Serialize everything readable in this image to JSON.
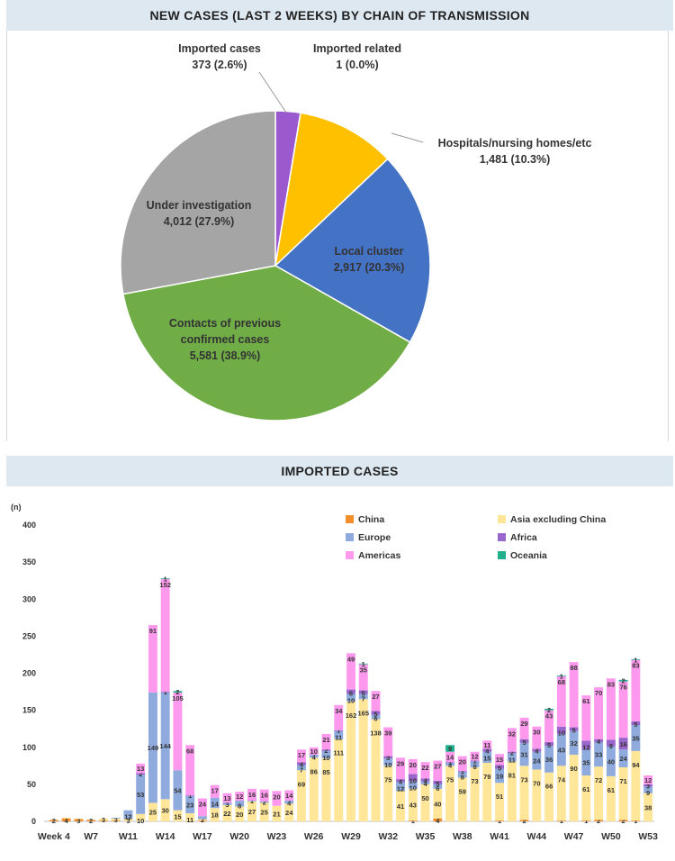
{
  "pie_header": "NEW CASES (LAST 2 WEEKS) BY CHAIN OF TRANSMISSION",
  "bar_header": "IMPORTED CASES",
  "chart_data": [
    {
      "type": "pie",
      "slices": [
        {
          "label": "Imported cases",
          "value_label": "373  (2.6%)",
          "value": 373,
          "percent": 2.6,
          "color": "#9b59d0"
        },
        {
          "label": "Imported related",
          "value_label": "1  (0.0%)",
          "value": 1,
          "percent": 0.0,
          "color": "#ff9900"
        },
        {
          "label": "Hospitals/nursing homes/etc",
          "value_label": "1,481  (10.3%)",
          "value": 1481,
          "percent": 10.3,
          "color": "#ffc000"
        },
        {
          "label": "Local cluster",
          "value_label": "2,917  (20.3%)",
          "value": 2917,
          "percent": 20.3,
          "color": "#4472c4"
        },
        {
          "label": "Contacts of previous confirmed cases",
          "label_lines": [
            "Contacts of previous",
            "confirmed cases"
          ],
          "value_label": "5,581  (38.9%)",
          "value": 5581,
          "percent": 38.9,
          "color": "#70ad47"
        },
        {
          "label": "Under investigation",
          "value_label": "4,012  (27.9%)",
          "value": 4012,
          "percent": 27.9,
          "color": "#a5a5a5"
        }
      ]
    },
    {
      "type": "bar",
      "stacked": true,
      "ylabel": "(n)",
      "ylim": [
        0,
        400
      ],
      "yticks": [
        0,
        50,
        100,
        150,
        200,
        250,
        300,
        350,
        400
      ],
      "x_tick_labels": [
        "Week 4",
        "W7",
        "W11",
        "W14",
        "W17",
        "W20",
        "W23",
        "W26",
        "W29",
        "W32",
        "W35",
        "W38",
        "W41",
        "W44",
        "W47",
        "W50",
        "W53"
      ],
      "legend": [
        {
          "name": "China",
          "color": "#f28e2b"
        },
        {
          "name": "Asia excluding China",
          "color": "#ffe699"
        },
        {
          "name": "Europe",
          "color": "#8faadc"
        },
        {
          "name": "Africa",
          "color": "#9966cc"
        },
        {
          "name": "Americas",
          "color": "#ff99ee"
        },
        {
          "name": "Oceania",
          "color": "#20b08c"
        }
      ],
      "series_order": [
        "china",
        "asia",
        "europe",
        "africa",
        "americas",
        "oceania"
      ],
      "series_colors": {
        "china": "#f28e2b",
        "asia": "#ffe699",
        "europe": "#8faadc",
        "africa": "#9966cc",
        "americas": "#ff99ee",
        "oceania": "#20b08c"
      },
      "weeks": [
        {
          "w": "Week 4",
          "china": 2,
          "asia": 0,
          "europe": 0,
          "africa": 0,
          "americas": 0,
          "oceania": 0,
          "labels": {
            "china": "2"
          }
        },
        {
          "w": "W5",
          "china": 4,
          "asia": 1,
          "europe": 0,
          "africa": 0,
          "americas": 0,
          "oceania": 0,
          "labels": {
            "china": "4"
          }
        },
        {
          "w": "W6",
          "china": 3,
          "asia": 1,
          "europe": 0,
          "africa": 0,
          "americas": 0,
          "oceania": 0,
          "labels": {
            "china": "3"
          }
        },
        {
          "w": "W7",
          "china": 2,
          "asia": 0,
          "europe": 0,
          "africa": 0,
          "americas": 0,
          "oceania": 0,
          "labels": {
            "china": "2"
          }
        },
        {
          "w": "W8",
          "china": 1,
          "asia": 3,
          "europe": 0,
          "africa": 0,
          "americas": 0,
          "oceania": 0,
          "labels": {
            "asia": "3"
          }
        },
        {
          "w": "W9",
          "china": 1,
          "asia": 3,
          "europe": 1,
          "africa": 0,
          "americas": 0,
          "oceania": 0,
          "labels": {
            "asia": "3"
          }
        },
        {
          "w": "W10",
          "china": 0,
          "asia": 3,
          "europe": 12,
          "africa": 0,
          "americas": 0,
          "oceania": 0,
          "labels": {
            "asia": "3",
            "europe": "12"
          }
        },
        {
          "w": "W11",
          "china": 0,
          "asia": 10,
          "europe": 53,
          "africa": 2,
          "americas": 13,
          "oceania": 0,
          "labels": {
            "asia": "10",
            "europe": "53",
            "africa": "2",
            "americas": "13"
          }
        },
        {
          "w": "W12",
          "china": 0,
          "asia": 25,
          "europe": 149,
          "africa": 0,
          "americas": 91,
          "oceania": 0,
          "labels": {
            "asia": "25",
            "europe": "149",
            "americas": "91"
          }
        },
        {
          "w": "W13",
          "china": 0,
          "asia": 30,
          "europe": 144,
          "africa": 1,
          "americas": 152,
          "oceania": 1,
          "labels": {
            "asia": "30",
            "europe": "144",
            "africa": "1",
            "americas": "152",
            "oceania": "1"
          }
        },
        {
          "w": "W14",
          "china": 0,
          "asia": 15,
          "europe": 54,
          "africa": 0,
          "americas": 105,
          "oceania": 2,
          "labels": {
            "asia": "15",
            "europe": "54",
            "americas": "105",
            "oceania": "2"
          }
        },
        {
          "w": "W15",
          "china": 0,
          "asia": 11,
          "europe": 23,
          "africa": 1,
          "americas": 68,
          "oceania": 0,
          "labels": {
            "asia": "11",
            "europe": "23",
            "africa": "1",
            "americas": "68"
          }
        },
        {
          "w": "W16",
          "china": 1,
          "asia": 2,
          "europe": 4,
          "africa": 0,
          "americas": 24,
          "oceania": 0,
          "labels": {
            "asia": "2",
            "americas": "24"
          }
        },
        {
          "w": "W17",
          "china": 0,
          "asia": 18,
          "europe": 14,
          "africa": 0,
          "americas": 17,
          "oceania": 0,
          "labels": {
            "asia": "18",
            "europe": "14",
            "americas": "17"
          }
        },
        {
          "w": "W18",
          "china": 0,
          "asia": 22,
          "europe": 3,
          "africa": 0,
          "americas": 13,
          "oceania": 0,
          "labels": {
            "asia": "22",
            "europe": "3",
            "americas": "13"
          }
        },
        {
          "w": "W19",
          "china": 0,
          "asia": 20,
          "europe": 8,
          "africa": 0,
          "americas": 12,
          "oceania": 0,
          "labels": {
            "asia": "20",
            "europe": "8",
            "americas": "12"
          }
        },
        {
          "w": "W20",
          "china": 0,
          "asia": 27,
          "europe": 1,
          "africa": 0,
          "americas": 16,
          "oceania": 0,
          "labels": {
            "asia": "27",
            "europe": "1",
            "americas": "16"
          }
        },
        {
          "w": "W21",
          "china": 0,
          "asia": 25,
          "europe": 2,
          "africa": 0,
          "americas": 16,
          "oceania": 0,
          "labels": {
            "asia": "25",
            "europe": "2",
            "americas": "16"
          }
        },
        {
          "w": "W22",
          "china": 0,
          "asia": 21,
          "europe": 0,
          "africa": 0,
          "americas": 20,
          "oceania": 0,
          "labels": {
            "asia": "21",
            "americas": "20"
          }
        },
        {
          "w": "W23",
          "china": 0,
          "asia": 24,
          "europe": 4,
          "africa": 0,
          "americas": 14,
          "oceania": 0,
          "labels": {
            "asia": "24",
            "europe": "4",
            "americas": "14"
          }
        },
        {
          "w": "W24",
          "china": 0,
          "asia": 69,
          "europe": 7,
          "africa": 4,
          "americas": 17,
          "oceania": 0,
          "labels": {
            "asia": "69",
            "europe": "7",
            "africa": "4",
            "americas": "17"
          }
        },
        {
          "w": "W25",
          "china": 0,
          "asia": 86,
          "europe": 4,
          "africa": 0,
          "americas": 10,
          "oceania": 0,
          "labels": {
            "asia": "86",
            "europe": "4",
            "americas": "10"
          }
        },
        {
          "w": "W26",
          "china": 0,
          "asia": 85,
          "europe": 10,
          "africa": 2,
          "americas": 21,
          "oceania": 0,
          "labels": {
            "asia": "85",
            "europe": "10",
            "africa": "2",
            "americas": "21"
          }
        },
        {
          "w": "W27",
          "china": 0,
          "asia": 111,
          "europe": 11,
          "africa": 1,
          "americas": 34,
          "oceania": 0,
          "labels": {
            "asia": "111",
            "europe": "11",
            "africa": "1",
            "americas": "34"
          }
        },
        {
          "w": "W28",
          "china": 0,
          "asia": 162,
          "europe": 10,
          "africa": 6,
          "americas": 49,
          "oceania": 0,
          "labels": {
            "asia": "162",
            "europe": "10",
            "africa": "6",
            "americas": "49"
          }
        },
        {
          "w": "W29",
          "china": 0,
          "asia": 165,
          "europe": 7,
          "africa": 5,
          "americas": 35,
          "oceania": 1,
          "labels": {
            "asia": "165",
            "europe": "7",
            "africa": "5",
            "americas": "35",
            "oceania": "1"
          }
        },
        {
          "w": "W30",
          "china": 0,
          "asia": 138,
          "europe": 6,
          "africa": 5,
          "americas": 27,
          "oceania": 0,
          "labels": {
            "asia": "138",
            "europe": "6",
            "africa": "5",
            "americas": "27"
          }
        },
        {
          "w": "W31",
          "china": 0,
          "asia": 75,
          "europe": 10,
          "africa": 3,
          "americas": 39,
          "oceania": 0,
          "labels": {
            "asia": "75",
            "europe": "10",
            "africa": "3",
            "americas": "39"
          }
        },
        {
          "w": "W32",
          "china": 0,
          "asia": 41,
          "europe": 12,
          "africa": 4,
          "americas": 29,
          "oceania": 0,
          "labels": {
            "asia": "41",
            "europe": "12",
            "africa": "4",
            "americas": "29"
          }
        },
        {
          "w": "W33",
          "china": 1,
          "asia": 43,
          "europe": 10,
          "africa": 10,
          "americas": 20,
          "oceania": 0,
          "labels": {
            "china": "1",
            "asia": "43",
            "europe": "10",
            "africa": "10",
            "americas": "20"
          }
        },
        {
          "w": "W34",
          "china": 0,
          "asia": 50,
          "europe": 4,
          "africa": 4,
          "americas": 22,
          "oceania": 0,
          "labels": {
            "asia": "50",
            "europe": "4",
            "africa": "4",
            "americas": "22"
          }
        },
        {
          "w": "W35",
          "china": 4,
          "asia": 40,
          "europe": 6,
          "africa": 5,
          "americas": 27,
          "oceania": 0,
          "labels": {
            "china": "4",
            "asia": "40",
            "europe": "6",
            "africa": "5",
            "americas": "27"
          }
        },
        {
          "w": "W36",
          "china": 0,
          "asia": 75,
          "europe": 4,
          "africa": 1,
          "americas": 14,
          "oceania": 9,
          "labels": {
            "asia": "75",
            "europe": "4",
            "africa": "1",
            "americas": "14",
            "oceania": "9"
          }
        },
        {
          "w": "W37",
          "china": 0,
          "asia": 59,
          "europe": 8,
          "africa": 1,
          "americas": 20,
          "oceania": 0,
          "labels": {
            "asia": "59",
            "europe": "8",
            "africa": "1",
            "americas": "20"
          }
        },
        {
          "w": "W38",
          "china": 0,
          "asia": 73,
          "europe": 8,
          "africa": 1,
          "americas": 12,
          "oceania": 0,
          "labels": {
            "asia": "73",
            "europe": "8",
            "africa": "1",
            "americas": "12"
          }
        },
        {
          "w": "W39",
          "china": 0,
          "asia": 79,
          "europe": 15,
          "africa": 4,
          "americas": 11,
          "oceania": 0,
          "labels": {
            "asia": "79",
            "europe": "15",
            "africa": "4",
            "americas": "11"
          }
        },
        {
          "w": "W40",
          "china": 1,
          "asia": 51,
          "europe": 19,
          "africa": 5,
          "americas": 15,
          "oceania": 0,
          "labels": {
            "china": "1",
            "asia": "51",
            "europe": "19",
            "africa": "5",
            "americas": "15"
          }
        },
        {
          "w": "W41",
          "china": 0,
          "asia": 81,
          "europe": 11,
          "africa": 2,
          "americas": 32,
          "oceania": 0,
          "labels": {
            "asia": "81",
            "europe": "11",
            "africa": "2",
            "americas": "32"
          }
        },
        {
          "w": "W42",
          "china": 2,
          "asia": 73,
          "europe": 31,
          "africa": 5,
          "americas": 29,
          "oceania": 0,
          "labels": {
            "china": "2",
            "asia": "73",
            "europe": "31",
            "africa": "5",
            "americas": "29"
          }
        },
        {
          "w": "W43",
          "china": 0,
          "asia": 70,
          "europe": 24,
          "africa": 4,
          "americas": 30,
          "oceania": 0,
          "labels": {
            "asia": "70",
            "europe": "24",
            "africa": "4",
            "americas": "30"
          }
        },
        {
          "w": "W44",
          "china": 0,
          "asia": 66,
          "europe": 36,
          "africa": 5,
          "americas": 43,
          "oceania": 2,
          "labels": {
            "asia": "66",
            "europe": "36",
            "africa": "5",
            "americas": "43",
            "oceania": "2"
          }
        },
        {
          "w": "W45",
          "china": 1,
          "asia": 74,
          "europe": 43,
          "africa": 10,
          "americas": 68,
          "oceania": 1,
          "labels": {
            "china": "1",
            "asia": "74",
            "europe": "43",
            "africa": "10",
            "americas": "68",
            "oceania": "1"
          }
        },
        {
          "w": "W46",
          "china": 0,
          "asia": 90,
          "europe": 32,
          "africa": 5,
          "americas": 88,
          "oceania": 0,
          "labels": {
            "asia": "90",
            "europe": "32",
            "africa": "5",
            "americas": "88"
          }
        },
        {
          "w": "W47",
          "china": 1,
          "asia": 61,
          "europe": 35,
          "africa": 12,
          "americas": 61,
          "oceania": 0,
          "labels": {
            "china": "1",
            "asia": "61",
            "europe": "35",
            "africa": "12",
            "americas": "61"
          }
        },
        {
          "w": "W48",
          "china": 2,
          "asia": 72,
          "europe": 33,
          "africa": 4,
          "americas": 70,
          "oceania": 0,
          "labels": {
            "china": "2",
            "asia": "72",
            "europe": "33",
            "africa": "4",
            "americas": "70"
          }
        },
        {
          "w": "W49",
          "china": 0,
          "asia": 61,
          "europe": 40,
          "africa": 9,
          "americas": 83,
          "oceania": 0,
          "labels": {
            "asia": "61",
            "europe": "40",
            "africa": "9",
            "americas": "83"
          }
        },
        {
          "w": "W50",
          "china": 2,
          "asia": 71,
          "europe": 24,
          "africa": 16,
          "americas": 76,
          "oceania": 2,
          "labels": {
            "china": "2",
            "asia": "71",
            "europe": "24",
            "africa": "16",
            "americas": "76",
            "oceania": "2"
          }
        },
        {
          "w": "W51",
          "china": 1,
          "asia": 94,
          "europe": 35,
          "africa": 5,
          "americas": 83,
          "oceania": 1,
          "labels": {
            "china": "1",
            "asia": "94",
            "europe": "35",
            "africa": "5",
            "americas": "83",
            "oceania": "1"
          }
        },
        {
          "w": "W52",
          "china": 0,
          "asia": 38,
          "europe": 9,
          "africa": 3,
          "americas": 12,
          "oceania": 0,
          "labels": {
            "asia": "38",
            "europe": "9",
            "africa": "3",
            "americas": "12"
          }
        }
      ]
    }
  ]
}
